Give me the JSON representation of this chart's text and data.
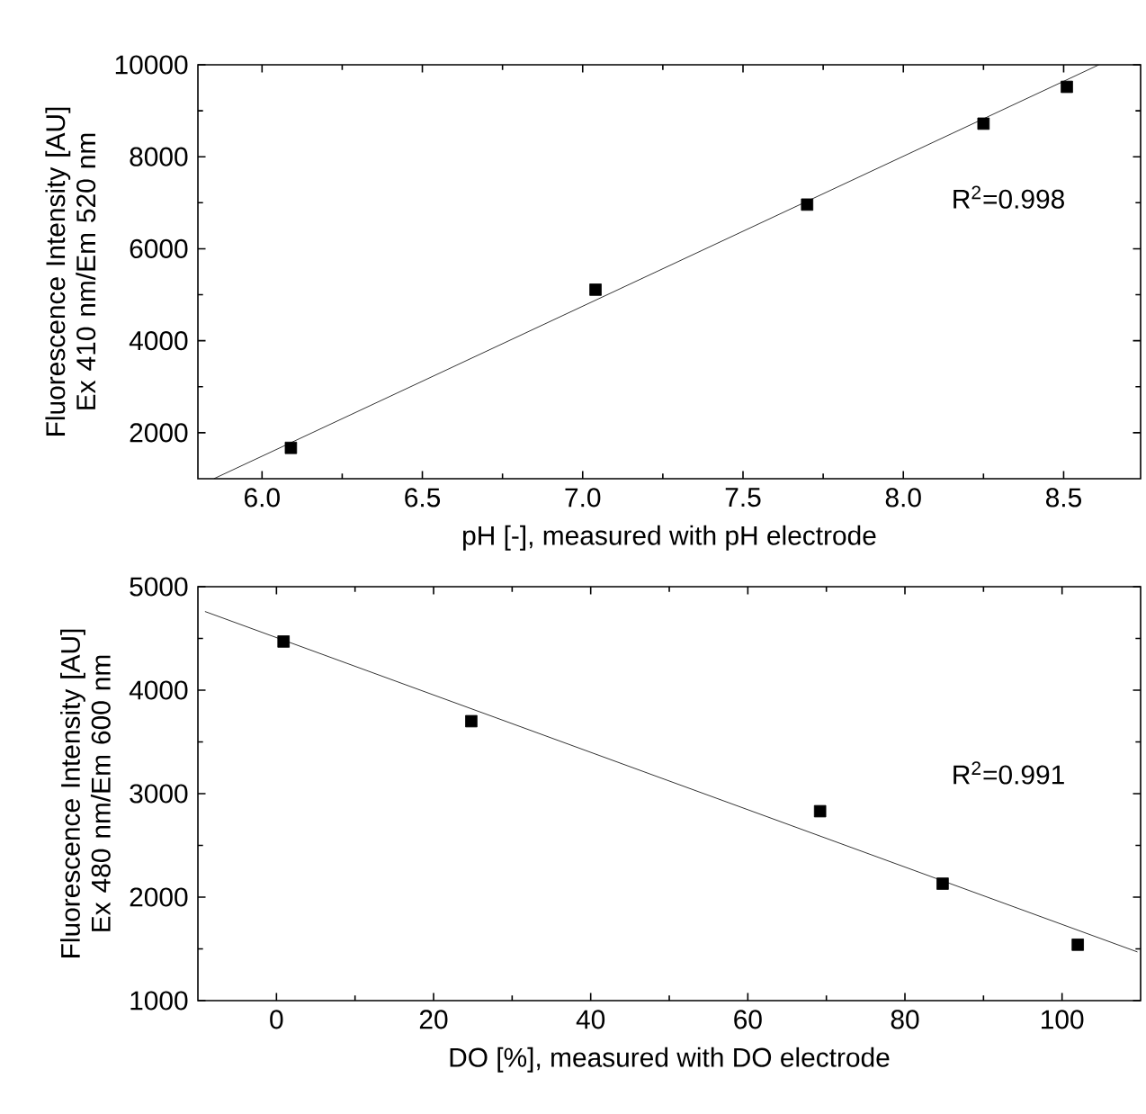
{
  "chart_data": [
    {
      "type": "scatter",
      "xlabel": "pH [-], measured with pH electrode",
      "ylabel": "Fluorescence Intensity [AU] Ex 410 nm/Em 520 nm",
      "xlim": [
        5.8,
        8.74
      ],
      "ylim": [
        1000,
        10000
      ],
      "xticks": [
        {
          "value": 6,
          "label": "6.0"
        },
        6.5,
        {
          "value": 7,
          "label": "7.0"
        },
        7.5,
        {
          "value": 8,
          "label": "8.0"
        },
        8.5
      ],
      "yticks": [
        2000,
        4000,
        6000,
        8000,
        10000
      ],
      "annotations": [
        "R$^{2}$=0.998"
      ],
      "series": [
        {
          "color": "#000000",
          "marker": "square",
          "x": [
            6.09,
            7.04,
            7.7,
            8.25,
            8.51
          ],
          "values": [
            1670,
            5110,
            6960,
            8720,
            9520
          ]
        },
        {
          "type": "line",
          "color": "#000000",
          "marker": "none",
          "x": [
            5.85,
            8.61
          ],
          "values": [
            1000,
            10000
          ]
        }
      ]
    },
    {
      "type": "scatter",
      "xlabel": "DO [%], measured with DO electrode",
      "ylabel": "Fluorescence Intensity [AU] Ex 480 nm/Em 600 nm",
      "xlim": [
        -10,
        110
      ],
      "ylim": [
        1000,
        5000
      ],
      "xticks": [
        0,
        20,
        40,
        60,
        80,
        100
      ],
      "yticks": [
        1000,
        2000,
        3000,
        4000,
        5000
      ],
      "annotations": [
        "R$^{2}$=0.991"
      ],
      "series": [
        {
          "color": "#000000",
          "marker": "square",
          "x": [
            0.9,
            24.8,
            69.2,
            84.8,
            102
          ],
          "values": [
            4470,
            3700,
            2830,
            2130,
            1540
          ]
        },
        {
          "type": "line",
          "color": "#000000",
          "marker": "none",
          "x": [
            -9.1,
            109.6
          ],
          "values": [
            4760,
            1470
          ]
        }
      ]
    }
  ]
}
